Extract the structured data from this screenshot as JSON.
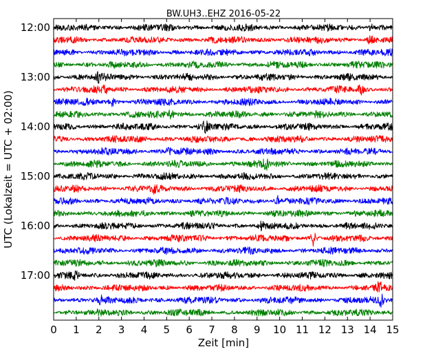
{
  "chart_data": {
    "type": "line",
    "title": "BW.UH3..EHZ 2016-05-22",
    "xlabel": "Zeit  [min]",
    "ylabel": "UTC (Lokalzeit = UTC + 02:00)",
    "xlim": [
      0,
      15
    ],
    "x_ticks": [
      "0",
      "1",
      "2",
      "3",
      "4",
      "5",
      "6",
      "7",
      "8",
      "9",
      "10",
      "11",
      "12",
      "13",
      "14",
      "15"
    ],
    "y_start": "12:00",
    "y_ticks": [
      "12:00",
      "13:00",
      "14:00",
      "15:00",
      "16:00",
      "17:00"
    ],
    "rows_per_hour": 4,
    "row_minutes": 15,
    "n_rows": 24,
    "grid": false,
    "legend": "none",
    "series_colors": [
      "#000000",
      "#ff0000",
      "#0000ff",
      "#008000"
    ],
    "events": [
      {
        "row": 0,
        "minute": 14.0,
        "strength": 2.2
      },
      {
        "row": 1,
        "minute": 14.0,
        "strength": 1.6
      },
      {
        "row": 4,
        "minute": 2.0,
        "strength": 1.5
      },
      {
        "row": 5,
        "minute": 2.3,
        "strength": 1.7
      },
      {
        "row": 5,
        "minute": 13.6,
        "strength": 1.6
      },
      {
        "row": 6,
        "minute": 2.6,
        "strength": 1.3
      },
      {
        "row": 7,
        "minute": 5.2,
        "strength": 2.0
      },
      {
        "row": 8,
        "minute": 6.7,
        "strength": 2.2
      },
      {
        "row": 10,
        "minute": 5.1,
        "strength": 1.6
      },
      {
        "row": 11,
        "minute": 9.4,
        "strength": 2.2
      },
      {
        "row": 13,
        "minute": 4.5,
        "strength": 2.0
      },
      {
        "row": 14,
        "minute": 9.9,
        "strength": 1.7
      },
      {
        "row": 16,
        "minute": 9.2,
        "strength": 1.4
      },
      {
        "row": 17,
        "minute": 11.5,
        "strength": 3.0
      },
      {
        "row": 20,
        "minute": 1.0,
        "strength": 1.5
      },
      {
        "row": 21,
        "minute": 14.4,
        "strength": 1.8
      },
      {
        "row": 22,
        "minute": 2.1,
        "strength": 1.7
      },
      {
        "row": 22,
        "minute": 14.5,
        "strength": 2.2
      }
    ]
  }
}
